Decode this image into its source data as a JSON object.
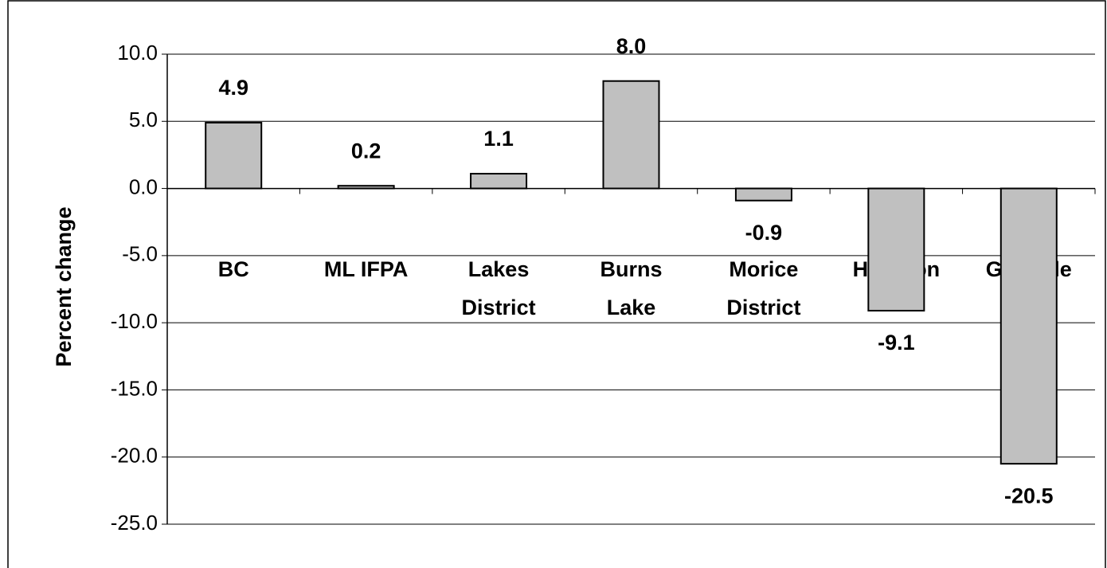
{
  "chart_data": {
    "type": "bar",
    "y_label": "Percent change",
    "categories": [
      "BC",
      "ML IFPA",
      "Lakes\nDistrict",
      "Burns\nLake",
      "Morice\nDistrict",
      "Houston",
      "Granisle"
    ],
    "values": [
      4.9,
      0.2,
      1.1,
      8.0,
      -0.9,
      -9.1,
      -20.5
    ],
    "value_labels": [
      "4.9",
      "0.2",
      "1.1",
      "8.0",
      "-0.9",
      "-9.1",
      "-20.5"
    ],
    "color": "#c0c0c0",
    "ylim": [
      -25,
      10
    ],
    "yticks": [
      {
        "value": -25,
        "label": "-25.0"
      },
      {
        "value": -20,
        "label": "-20.0"
      },
      {
        "value": -15,
        "label": "-15.0"
      },
      {
        "value": -10,
        "label": "-10.0"
      },
      {
        "value": -5,
        "label": "-5.0"
      },
      {
        "value": 0,
        "label": "0.0"
      },
      {
        "value": 5,
        "label": "5.0"
      },
      {
        "value": 10,
        "label": "10.0"
      }
    ],
    "grid": true
  }
}
